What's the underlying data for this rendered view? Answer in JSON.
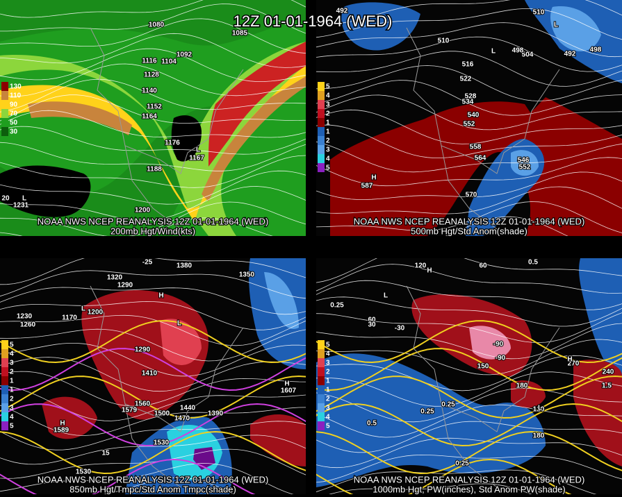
{
  "header": {
    "title": "12Z 01-01-1964 (WED)"
  },
  "panels": [
    {
      "source": "NOAA NWS NCEP REANALYSIS 12Z 01-01-1964 (WED)",
      "caption": "200mb Hgt/Wind(kts)",
      "legend": [
        "130",
        "110",
        "90",
        "70",
        "50",
        "30"
      ],
      "labels": [
        "1080",
        "1092",
        "1104",
        "1116",
        "1128",
        "1140",
        "1152",
        "1164",
        "1176",
        "1188",
        "1200",
        "1167",
        "1231",
        "L",
        "L",
        "1085",
        "20"
      ]
    },
    {
      "source": "NOAA NWS NCEP REANALYSIS 12Z 01-01-1964 (WED)",
      "caption": "500mb Hgt/Std Anom(shade)",
      "legend": [
        "5",
        "4",
        "3",
        "2",
        "1",
        "1",
        "2",
        "3",
        "4",
        "5"
      ],
      "labels": [
        "492",
        "510",
        "492",
        "498",
        "504",
        "510",
        "516",
        "522",
        "528",
        "534",
        "540",
        "552",
        "558",
        "564",
        "570",
        "546",
        "552",
        "587",
        "H",
        "L",
        "L",
        "498"
      ]
    },
    {
      "source": "NOAA NWS NCEP REANALYSIS 12Z 01-01-1964 (WED)",
      "caption": "850mb Hgt/Tmpc/Std Anom Tmpc(shade)",
      "legend": [
        "5",
        "4",
        "3",
        "2",
        "1",
        "1",
        "2",
        "3",
        "4",
        "5"
      ],
      "labels": [
        "-25",
        "1380",
        "1320",
        "1290",
        "1350",
        "1170",
        "1200",
        "1230",
        "1260",
        "1290",
        "1410",
        "1560",
        "1579",
        "1500",
        "1440",
        "1470",
        "1530",
        "1589",
        "1607",
        "1390",
        "1530",
        "15",
        "H",
        "H",
        "L",
        "L",
        "H"
      ]
    },
    {
      "source": "NOAA NWS NCEP REANALYSIS 12Z 01-01-1964 (WED)",
      "caption": "1000mb Hgt, PW(inches), Std Anom PW(shade)",
      "legend": [
        "5",
        "4",
        "3",
        "2",
        "1",
        "1",
        "2",
        "3",
        "4",
        "5"
      ],
      "labels": [
        "120",
        "60",
        "0.5",
        "-30",
        "60",
        "30",
        "-90",
        "0.25",
        "150",
        "180",
        "240",
        "270",
        "0.25",
        "0.25",
        "0.5",
        "1.5",
        "120",
        "180",
        "-90",
        "H",
        "L",
        "H",
        "L",
        "0.25"
      ]
    }
  ]
}
